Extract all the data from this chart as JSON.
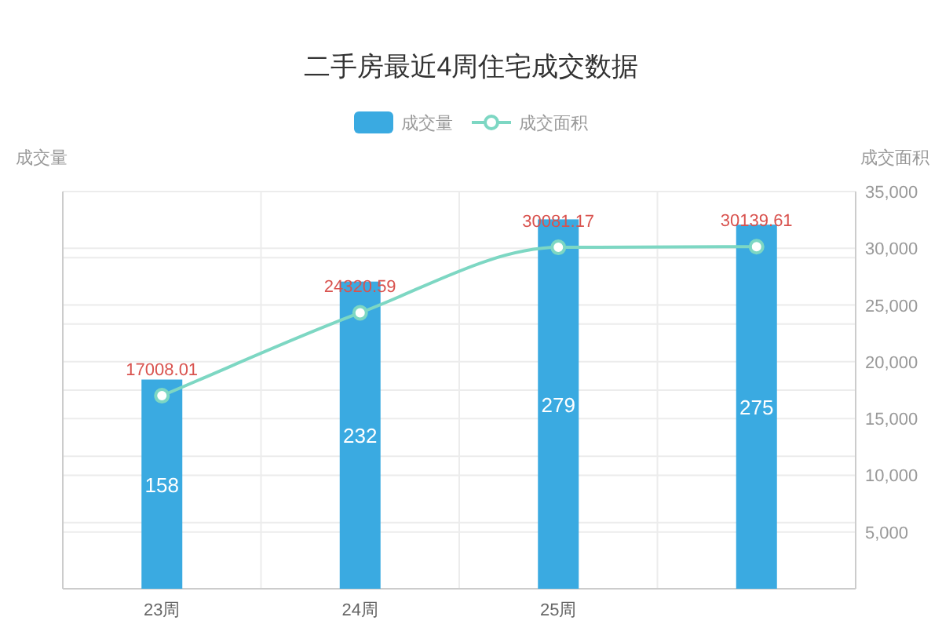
{
  "chart_data": {
    "type": "bar",
    "title": "二手房最近4周住宅成交数据",
    "categories": [
      "23周",
      "24周",
      "25周",
      null
    ],
    "ylabel": "成交量",
    "y2label": "成交面积",
    "series": [
      {
        "name": "成交量",
        "color": "#3aaae1",
        "values": [
          158,
          232,
          279,
          275
        ]
      },
      {
        "name": "成交面积",
        "type": "line",
        "axis": "y2",
        "color": "#7dd7c3",
        "marker": "circle",
        "values": [
          17008.01,
          24320.59,
          30081.17,
          30139.61
        ]
      }
    ],
    "ylim": [
      0,
      300
    ],
    "yticks": [
      {
        "value": 0,
        "label": null
      },
      {
        "value": 50,
        "label": null
      },
      {
        "value": 100,
        "label": null
      },
      {
        "value": 150,
        "label": null
      },
      {
        "value": 200,
        "label": null
      },
      {
        "value": 250,
        "label": null
      },
      {
        "value": 300,
        "label": null
      }
    ],
    "y2lim": [
      0,
      35000
    ],
    "y2ticks": [
      {
        "value": 0,
        "label": null
      },
      {
        "value": 5000,
        "label": "5,000"
      },
      {
        "value": 10000,
        "label": "10,000"
      },
      {
        "value": 15000,
        "label": "15,000"
      },
      {
        "value": 20000,
        "label": "20,000"
      },
      {
        "value": 25000,
        "label": "25,000"
      },
      {
        "value": 30000,
        "label": "30,000"
      },
      {
        "value": 35000,
        "label": "35,000"
      }
    ],
    "grid": true,
    "legend": "top",
    "data_labels": true
  }
}
